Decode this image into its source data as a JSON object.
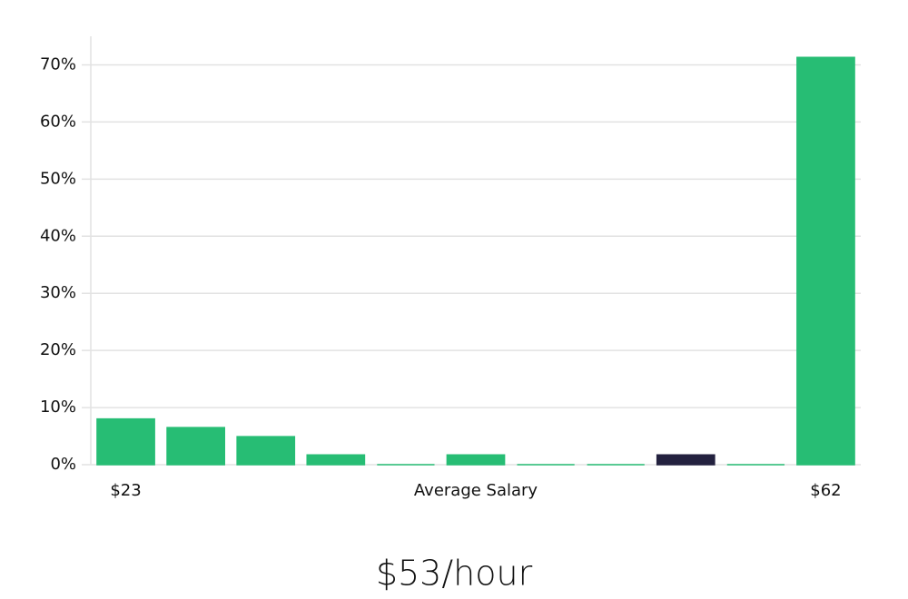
{
  "chart_data": {
    "type": "bar",
    "categories": [
      "$23",
      null,
      null,
      null,
      null,
      null,
      null,
      null,
      null,
      null,
      "$62"
    ],
    "values": [
      8,
      6.5,
      4.9,
      1.7,
      0,
      1.7,
      0,
      0,
      1.7,
      0,
      71.3
    ],
    "colors": [
      "#27bd74",
      "#27bd74",
      "#27bd74",
      "#27bd74",
      "#27bd74",
      "#27bd74",
      "#27bd74",
      "#27bd74",
      "#23213f",
      "#27bd74",
      "#27bd74"
    ],
    "x_label": "Average Salary",
    "ylim": [
      0,
      75
    ],
    "yticks": [
      {
        "value": 0,
        "label": "0%"
      },
      {
        "value": 10,
        "label": "10%"
      },
      {
        "value": 20,
        "label": "20%"
      },
      {
        "value": 30,
        "label": "30%"
      },
      {
        "value": 40,
        "label": "40%"
      },
      {
        "value": 50,
        "label": "50%"
      },
      {
        "value": 60,
        "label": "60%"
      },
      {
        "value": 70,
        "label": "70%"
      }
    ],
    "grid": true,
    "summary": "$53/hour"
  }
}
